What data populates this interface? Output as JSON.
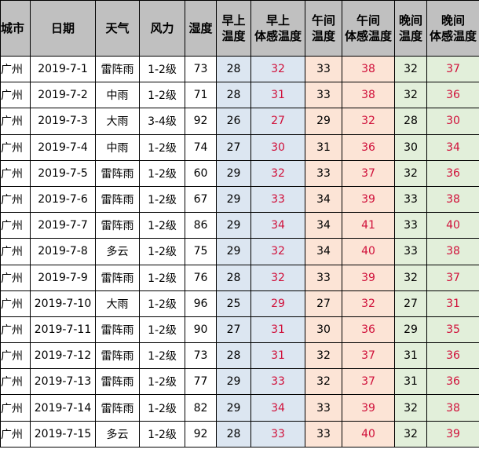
{
  "colors": {
    "header": "#c0c0c0",
    "morning": "#dce6f1",
    "noon": "#fce4d6",
    "evening": "#e2efda",
    "feel_text": "#d0103a"
  },
  "headers": [
    "城市",
    "日期",
    "天气",
    "风力",
    "湿度",
    "早上\n温度",
    "早上\n体感温度",
    "午间\n温度",
    "午间\n体感温度",
    "晚间\n温度",
    "晚间\n体感温度"
  ],
  "rows": [
    [
      "广州",
      "2019-7-1",
      "雷阵雨",
      "1-2级",
      "73",
      "28",
      "32",
      "33",
      "38",
      "32",
      "37"
    ],
    [
      "广州",
      "2019-7-2",
      "中雨",
      "1-2级",
      "71",
      "28",
      "31",
      "33",
      "38",
      "32",
      "36"
    ],
    [
      "广州",
      "2019-7-3",
      "大雨",
      "3-4级",
      "92",
      "26",
      "27",
      "29",
      "32",
      "28",
      "30"
    ],
    [
      "广州",
      "2019-7-4",
      "中雨",
      "1-2级",
      "74",
      "27",
      "30",
      "31",
      "36",
      "30",
      "34"
    ],
    [
      "广州",
      "2019-7-5",
      "雷阵雨",
      "1-2级",
      "60",
      "29",
      "32",
      "33",
      "37",
      "32",
      "36"
    ],
    [
      "广州",
      "2019-7-6",
      "雷阵雨",
      "1-2级",
      "67",
      "29",
      "33",
      "34",
      "39",
      "33",
      "38"
    ],
    [
      "广州",
      "2019-7-7",
      "雷阵雨",
      "1-2级",
      "86",
      "29",
      "34",
      "34",
      "41",
      "33",
      "40"
    ],
    [
      "广州",
      "2019-7-8",
      "多云",
      "1-2级",
      "75",
      "29",
      "32",
      "34",
      "40",
      "33",
      "38"
    ],
    [
      "广州",
      "2019-7-9",
      "雷阵雨",
      "1-2级",
      "76",
      "28",
      "32",
      "33",
      "39",
      "32",
      "37"
    ],
    [
      "广州",
      "2019-7-10",
      "大雨",
      "1-2级",
      "96",
      "25",
      "29",
      "27",
      "32",
      "27",
      "31"
    ],
    [
      "广州",
      "2019-7-11",
      "雷阵雨",
      "1-2级",
      "90",
      "27",
      "31",
      "30",
      "36",
      "29",
      "35"
    ],
    [
      "广州",
      "2019-7-12",
      "雷阵雨",
      "1-2级",
      "73",
      "28",
      "31",
      "32",
      "37",
      "31",
      "36"
    ],
    [
      "广州",
      "2019-7-13",
      "雷阵雨",
      "1-2级",
      "77",
      "29",
      "33",
      "32",
      "37",
      "31",
      "36"
    ],
    [
      "广州",
      "2019-7-14",
      "雷阵雨",
      "1-2级",
      "82",
      "29",
      "34",
      "33",
      "39",
      "32",
      "38"
    ],
    [
      "广州",
      "2019-7-15",
      "多云",
      "1-2级",
      "92",
      "28",
      "33",
      "33",
      "40",
      "32",
      "39"
    ]
  ]
}
